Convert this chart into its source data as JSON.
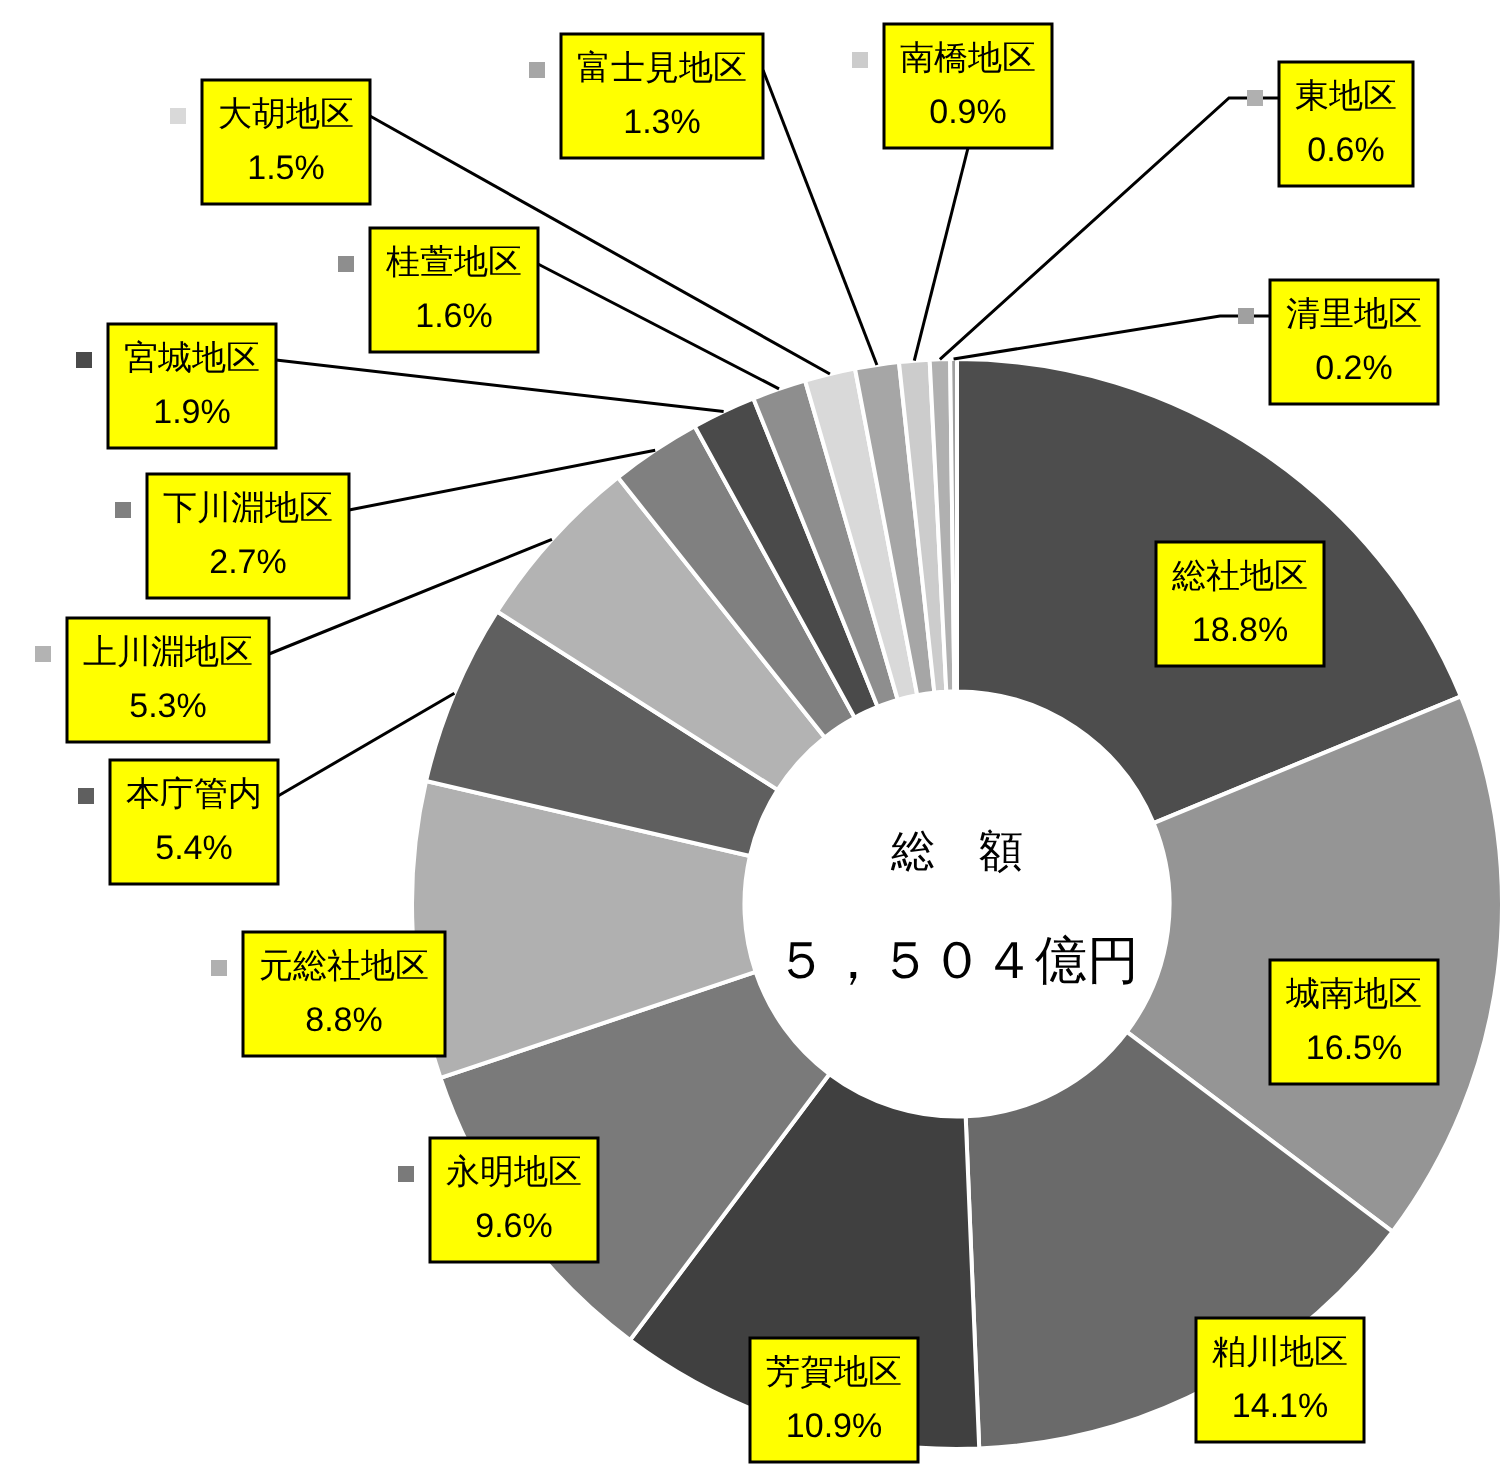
{
  "chart_data": {
    "type": "donut",
    "categories": [
      "総社地区",
      "城南地区",
      "粕川地区",
      "芳賀地区",
      "永明地区",
      "元総社地区",
      "本庁管内",
      "上川淵地区",
      "下川淵地区",
      "宮城地区",
      "桂萱地区",
      "大胡地区",
      "富士見地区",
      "南橋地区",
      "東地区",
      "清里地区"
    ],
    "values": [
      18.8,
      16.5,
      14.1,
      10.9,
      9.6,
      8.8,
      5.4,
      5.3,
      2.7,
      1.9,
      1.6,
      1.5,
      1.3,
      0.9,
      0.6,
      0.2
    ],
    "value_labels": [
      "18.8%",
      "16.5%",
      "14.1%",
      "10.9%",
      "9.6%",
      "8.8%",
      "5.4%",
      "5.3%",
      "2.7%",
      "1.9%",
      "1.6%",
      "1.5%",
      "1.3%",
      "0.9%",
      "0.6%",
      "0.2%"
    ],
    "colors": [
      "#4d4d4d",
      "#959595",
      "#6a6a6a",
      "#404040",
      "#7a7a7a",
      "#b0b0b0",
      "#5f5f5f",
      "#b3b3b3",
      "#808080",
      "#4a4a4a",
      "#8e8e8e",
      "#d9d9d9",
      "#a6a6a6",
      "#cccccc",
      "#b0b0b0",
      "#a0a0a0"
    ],
    "annotations": [
      "総　額",
      "５，５０４億円"
    ],
    "legend": "left"
  }
}
